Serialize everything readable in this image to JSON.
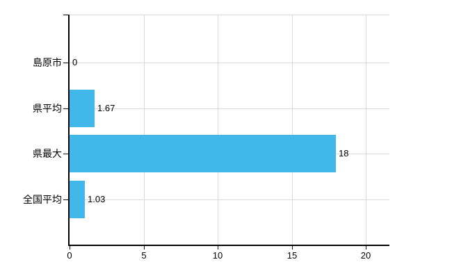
{
  "chart_data": {
    "type": "bar",
    "orientation": "horizontal",
    "title": "",
    "xlabel": "",
    "ylabel": "",
    "categories": [
      "島原市",
      "県平均",
      "県最大",
      "全国平均"
    ],
    "values": [
      0,
      1.67,
      18,
      1.03
    ],
    "value_labels": [
      "0",
      "1.67",
      "18",
      "1.03"
    ],
    "x_tick_values": [
      0,
      5,
      10,
      15,
      20
    ],
    "x_ticks": [
      "0",
      "5",
      "10",
      "15",
      "20"
    ],
    "xlim": [
      0,
      21.6
    ],
    "grid": "on",
    "legend_position": "none",
    "colors": {
      "bar": "#41b8e9",
      "grid": "#d9d9d9",
      "axis": "#000000",
      "text": "#000000",
      "background": "#ffffff"
    }
  }
}
